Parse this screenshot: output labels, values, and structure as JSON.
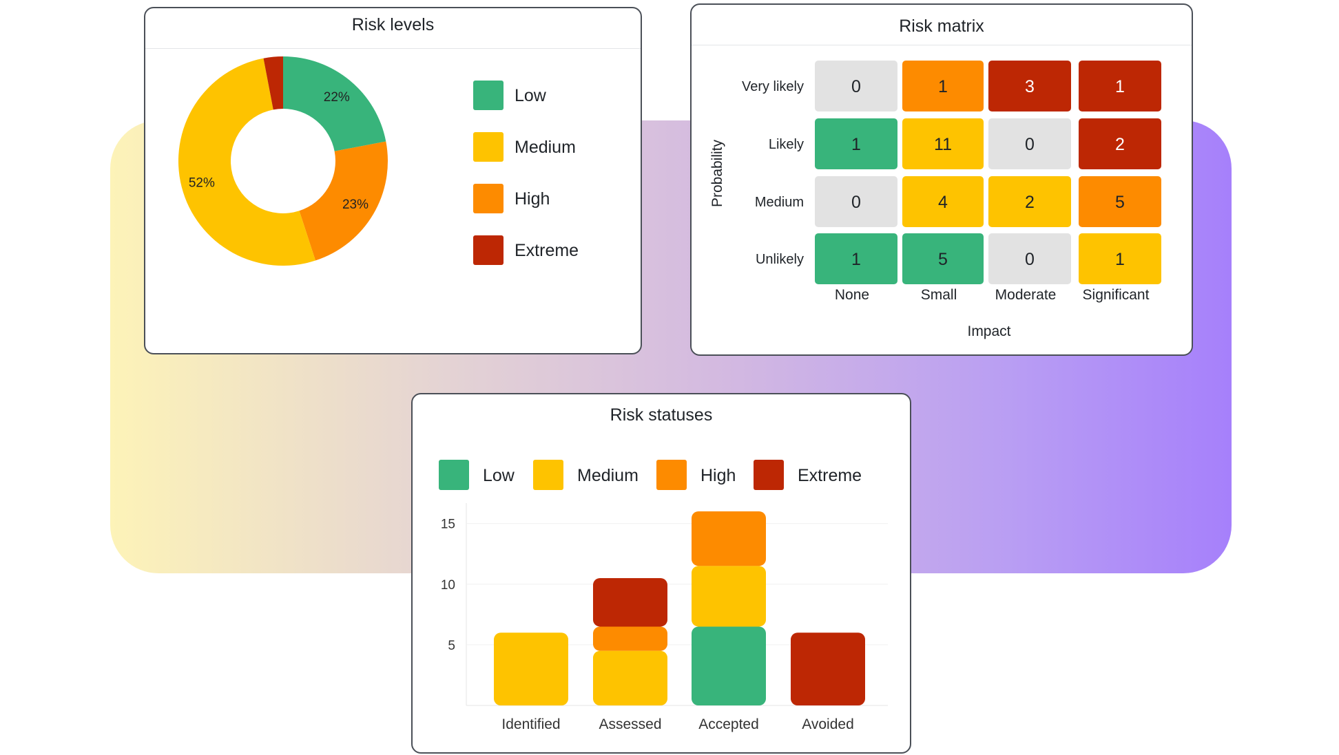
{
  "colors": {
    "low": "#38b47b",
    "medium": "#fec300",
    "high": "#fd8b00",
    "extreme": "#bd2704",
    "none": "#e2e2e2"
  },
  "chart_data": [
    {
      "type": "pie",
      "title": "Risk levels",
      "donut": true,
      "slices": [
        {
          "name": "Low",
          "value": 22,
          "label": "22%",
          "color_key": "low"
        },
        {
          "name": "High",
          "value": 23,
          "label": "23%",
          "color_key": "high"
        },
        {
          "name": "Medium",
          "value": 52,
          "label": "52%",
          "color_key": "medium"
        },
        {
          "name": "Extreme",
          "value": 3,
          "label": "",
          "color_key": "extreme"
        }
      ],
      "legend": [
        {
          "name": "Low",
          "color_key": "low"
        },
        {
          "name": "Medium",
          "color_key": "medium"
        },
        {
          "name": "High",
          "color_key": "high"
        },
        {
          "name": "Extreme",
          "color_key": "extreme"
        }
      ]
    },
    {
      "type": "heatmap",
      "title": "Risk matrix",
      "xlabel": "Impact",
      "ylabel": "Probability",
      "rows": [
        "Very likely",
        "Likely",
        "Medium",
        "Unlikely"
      ],
      "cols": [
        "None",
        "Small",
        "Moderate",
        "Significant"
      ],
      "values": [
        [
          0,
          1,
          3,
          1
        ],
        [
          1,
          11,
          0,
          2
        ],
        [
          0,
          4,
          2,
          5
        ],
        [
          1,
          5,
          0,
          1
        ]
      ],
      "color_keys": [
        [
          "none",
          "high",
          "extreme",
          "extreme"
        ],
        [
          "low",
          "medium",
          "none",
          "extreme"
        ],
        [
          "none",
          "medium",
          "medium",
          "high"
        ],
        [
          "low",
          "low",
          "none",
          "medium"
        ]
      ]
    },
    {
      "type": "bar",
      "stacked": true,
      "title": "Risk statuses",
      "categories": [
        "Identified",
        "Assessed",
        "Accepted",
        "Avoided"
      ],
      "series": [
        {
          "name": "Low",
          "color_key": "low",
          "values": [
            0,
            0,
            6.5,
            0
          ]
        },
        {
          "name": "Medium",
          "color_key": "medium",
          "values": [
            6,
            4.5,
            5,
            0
          ]
        },
        {
          "name": "High",
          "color_key": "high",
          "values": [
            0,
            2,
            4.5,
            0
          ]
        },
        {
          "name": "Extreme",
          "color_key": "extreme",
          "values": [
            0,
            4,
            0,
            6
          ]
        }
      ],
      "yticks": [
        5,
        10,
        15
      ],
      "ylim": [
        0,
        16
      ],
      "legend": [
        {
          "name": "Low",
          "color_key": "low"
        },
        {
          "name": "Medium",
          "color_key": "medium"
        },
        {
          "name": "High",
          "color_key": "high"
        },
        {
          "name": "Extreme",
          "color_key": "extreme"
        }
      ]
    }
  ]
}
